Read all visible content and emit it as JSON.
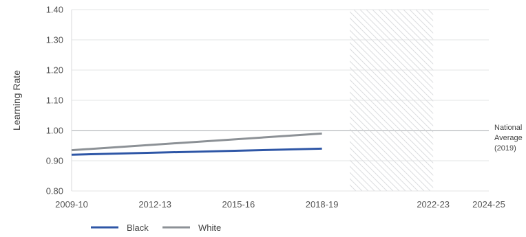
{
  "chart_data": {
    "type": "line",
    "ylabel": "Learning Rate",
    "ylim": [
      0.8,
      1.4
    ],
    "yticks": [
      "0.80",
      "0.90",
      "1.00",
      "1.10",
      "1.20",
      "1.30",
      "1.40"
    ],
    "xticks": [
      "2009-10",
      "2012-13",
      "2015-16",
      "2018-19",
      "2022-23",
      "2024-25"
    ],
    "x_start": "2009-10",
    "x_end": "2024-25",
    "grid": "horizontal",
    "series": [
      {
        "name": "Black",
        "color": "#2e56a6",
        "x": [
          "2009-10",
          "2018-19"
        ],
        "values": [
          0.92,
          0.94
        ]
      },
      {
        "name": "White",
        "color": "#8c9196",
        "x": [
          "2009-10",
          "2018-19"
        ],
        "values": [
          0.935,
          0.99
        ]
      }
    ],
    "reference_line": {
      "value": 1.0,
      "color": "#d0d2d4",
      "label": [
        "National",
        "Average",
        "(2019)"
      ]
    },
    "hatched_region": {
      "from": "2019-20",
      "to": "2021-22"
    },
    "legend": {
      "placement": "bottom-left"
    }
  }
}
